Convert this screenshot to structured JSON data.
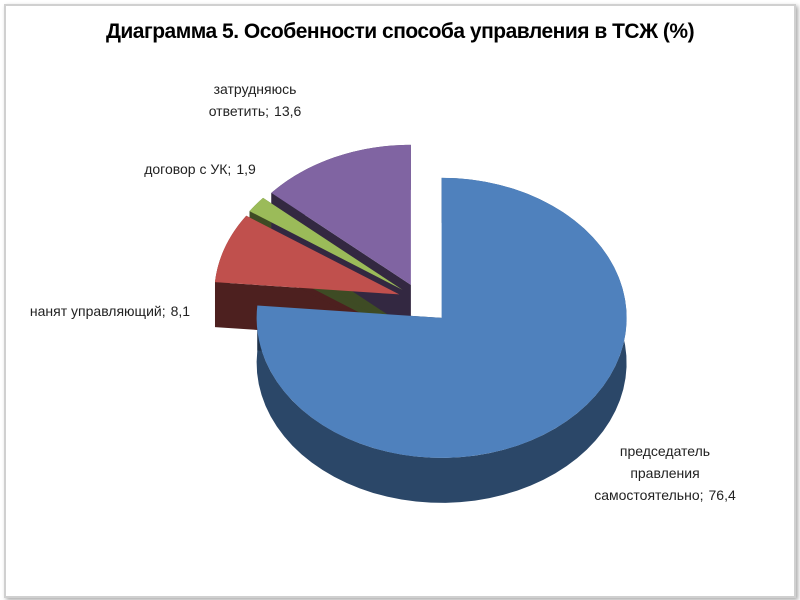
{
  "chart_data": {
    "type": "pie3d",
    "title": "Диаграмма 5. Особенности способа управления в ТСЖ (%)",
    "categories": [
      "председатель правления самостоятельно;",
      "нанят управляющий;",
      "договор с УК;",
      "затрудняюсь ответить;"
    ],
    "values": [
      76.4,
      8.1,
      1.9,
      13.6
    ],
    "value_labels": [
      "76,4",
      "8,1",
      "1,9",
      "13,6"
    ],
    "colors": [
      "#4f81bd",
      "#c0504d",
      "#9bbb59",
      "#8064a2"
    ]
  }
}
